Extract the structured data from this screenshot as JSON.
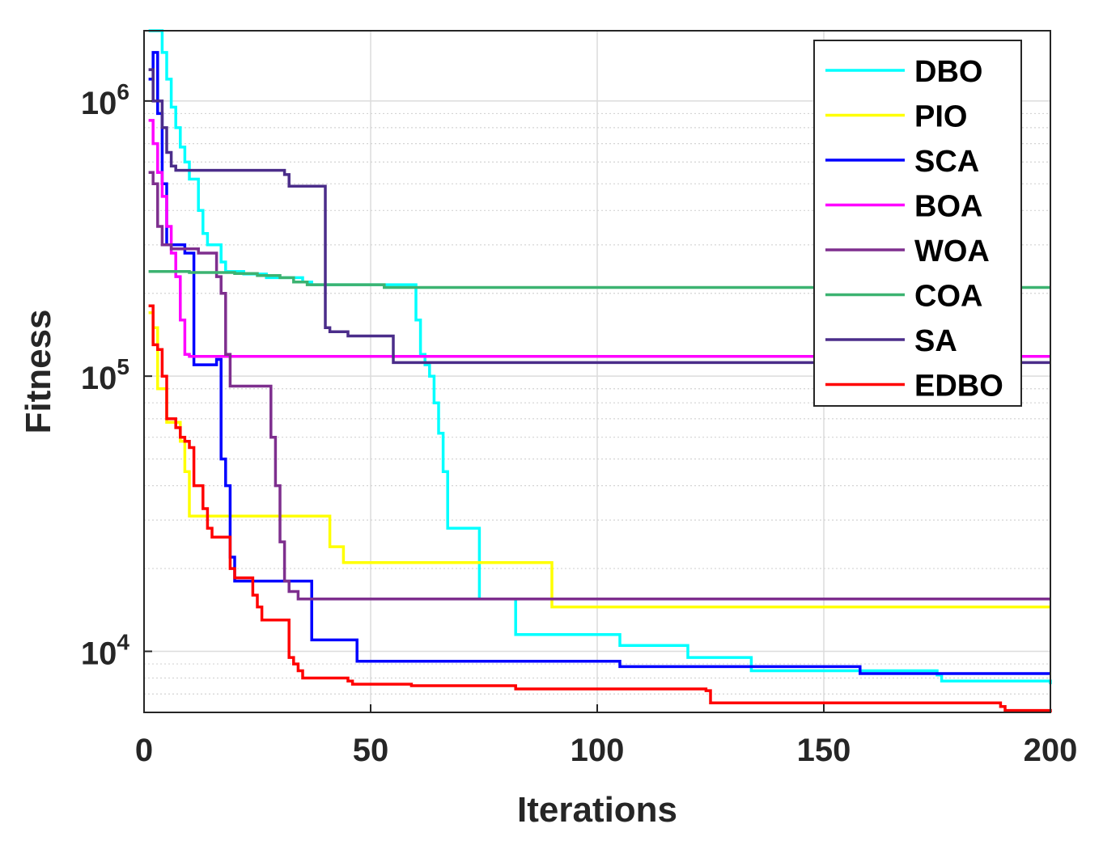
{
  "chart_data": {
    "type": "line",
    "title": "",
    "xlabel": "Iterations",
    "ylabel": "Fitness",
    "xscale": "linear",
    "yscale": "log",
    "xlim": [
      0,
      200
    ],
    "ylim": [
      6000,
      1800000
    ],
    "grid": true,
    "x_ticks": [
      {
        "value": 0,
        "label": "0"
      },
      {
        "value": 50,
        "label": "50"
      },
      {
        "value": 100,
        "label": "100"
      },
      {
        "value": 150,
        "label": "150"
      },
      {
        "value": 200,
        "label": "200"
      }
    ],
    "y_ticks": [
      {
        "value": 10000,
        "base": "10",
        "exp": "4"
      },
      {
        "value": 100000,
        "base": "10",
        "exp": "5"
      },
      {
        "value": 1000000,
        "base": "10",
        "exp": "6"
      }
    ],
    "legend_position": "top-right",
    "series": [
      {
        "name": "DBO",
        "color": "#00ffff",
        "points": [
          [
            1,
            1800000
          ],
          [
            3,
            1800000
          ],
          [
            4,
            1500000
          ],
          [
            5,
            1200000
          ],
          [
            6,
            950000
          ],
          [
            7,
            800000
          ],
          [
            8,
            680000
          ],
          [
            9,
            600000
          ],
          [
            10,
            520000
          ],
          [
            12,
            400000
          ],
          [
            13,
            330000
          ],
          [
            14,
            300000
          ],
          [
            17,
            260000
          ],
          [
            18,
            240000
          ],
          [
            22,
            235000
          ],
          [
            27,
            228000
          ],
          [
            35,
            220000
          ],
          [
            37,
            215000
          ],
          [
            59,
            215000
          ],
          [
            60,
            160000
          ],
          [
            61,
            120000
          ],
          [
            62,
            110000
          ],
          [
            63,
            100000
          ],
          [
            64,
            80000
          ],
          [
            65,
            62000
          ],
          [
            66,
            45000
          ],
          [
            67,
            28000
          ],
          [
            73,
            28000
          ],
          [
            74,
            15500
          ],
          [
            79,
            15500
          ],
          [
            82,
            11500
          ],
          [
            100,
            11500
          ],
          [
            105,
            10500
          ],
          [
            115,
            10500
          ],
          [
            120,
            9500
          ],
          [
            130,
            9500
          ],
          [
            134,
            8500
          ],
          [
            156,
            8500
          ],
          [
            175,
            8200
          ],
          [
            176,
            7800
          ],
          [
            200,
            7600
          ]
        ]
      },
      {
        "name": "PIO",
        "color": "#ffff00",
        "points": [
          [
            1,
            170000
          ],
          [
            2,
            150000
          ],
          [
            3,
            90000
          ],
          [
            5,
            68000
          ],
          [
            8,
            58000
          ],
          [
            9,
            45000
          ],
          [
            10,
            31000
          ],
          [
            40,
            31000
          ],
          [
            41,
            24000
          ],
          [
            43,
            24000
          ],
          [
            44,
            21000
          ],
          [
            89,
            21000
          ],
          [
            90,
            14500
          ],
          [
            200,
            14500
          ]
        ]
      },
      {
        "name": "SCA",
        "color": "#0000ff",
        "points": [
          [
            1,
            1200000
          ],
          [
            2,
            1500000
          ],
          [
            3,
            900000
          ],
          [
            4,
            500000
          ],
          [
            5,
            300000
          ],
          [
            9,
            280000
          ],
          [
            10,
            280000
          ],
          [
            11,
            110000
          ],
          [
            15,
            110000
          ],
          [
            16,
            115000
          ],
          [
            17,
            50000
          ],
          [
            18,
            40000
          ],
          [
            19,
            22000
          ],
          [
            20,
            18000
          ],
          [
            36,
            18000
          ],
          [
            37,
            11000
          ],
          [
            46,
            11000
          ],
          [
            47,
            9200
          ],
          [
            104,
            9200
          ],
          [
            105,
            8800
          ],
          [
            157,
            8800
          ],
          [
            158,
            8300
          ],
          [
            200,
            8300
          ]
        ]
      },
      {
        "name": "BOA",
        "color": "#ff00ff",
        "points": [
          [
            1,
            850000
          ],
          [
            2,
            700000
          ],
          [
            3,
            550000
          ],
          [
            4,
            450000
          ],
          [
            5,
            350000
          ],
          [
            6,
            280000
          ],
          [
            7,
            230000
          ],
          [
            8,
            160000
          ],
          [
            9,
            120000
          ],
          [
            10,
            118000
          ],
          [
            200,
            118000
          ]
        ]
      },
      {
        "name": "WOA",
        "color": "#7e2f8e",
        "points": [
          [
            1,
            550000
          ],
          [
            2,
            500000
          ],
          [
            3,
            350000
          ],
          [
            4,
            300000
          ],
          [
            6,
            290000
          ],
          [
            12,
            280000
          ],
          [
            16,
            230000
          ],
          [
            17,
            200000
          ],
          [
            18,
            120000
          ],
          [
            19,
            92000
          ],
          [
            27,
            92000
          ],
          [
            28,
            60000
          ],
          [
            29,
            40000
          ],
          [
            30,
            25000
          ],
          [
            31,
            18000
          ],
          [
            32,
            16500
          ],
          [
            34,
            15500
          ],
          [
            200,
            15500
          ]
        ]
      },
      {
        "name": "COA",
        "color": "#3cb371",
        "points": [
          [
            1,
            240000
          ],
          [
            10,
            238000
          ],
          [
            20,
            236000
          ],
          [
            25,
            232000
          ],
          [
            30,
            228000
          ],
          [
            33,
            220000
          ],
          [
            36,
            215000
          ],
          [
            52,
            215000
          ],
          [
            53,
            210000
          ],
          [
            200,
            210000
          ]
        ]
      },
      {
        "name": "SA",
        "color": "#4b2d8a",
        "points": [
          [
            1,
            1300000
          ],
          [
            2,
            1000000
          ],
          [
            4,
            800000
          ],
          [
            5,
            650000
          ],
          [
            6,
            580000
          ],
          [
            7,
            560000
          ],
          [
            30,
            560000
          ],
          [
            31,
            540000
          ],
          [
            32,
            490000
          ],
          [
            39,
            490000
          ],
          [
            40,
            150000
          ],
          [
            41,
            145000
          ],
          [
            44,
            145000
          ],
          [
            45,
            140000
          ],
          [
            54,
            140000
          ],
          [
            55,
            112000
          ],
          [
            200,
            112000
          ]
        ]
      },
      {
        "name": "EDBO",
        "color": "#ff0000",
        "points": [
          [
            1,
            180000
          ],
          [
            2,
            130000
          ],
          [
            3,
            125000
          ],
          [
            4,
            100000
          ],
          [
            5,
            70000
          ],
          [
            7,
            65000
          ],
          [
            8,
            60000
          ],
          [
            9,
            58000
          ],
          [
            10,
            55000
          ],
          [
            11,
            40000
          ],
          [
            13,
            33000
          ],
          [
            14,
            28000
          ],
          [
            15,
            26000
          ],
          [
            18,
            26000
          ],
          [
            19,
            20000
          ],
          [
            20,
            18500
          ],
          [
            23,
            18500
          ],
          [
            24,
            16000
          ],
          [
            25,
            14500
          ],
          [
            26,
            13000
          ],
          [
            31,
            13000
          ],
          [
            32,
            9500
          ],
          [
            33,
            9000
          ],
          [
            34,
            8500
          ],
          [
            35,
            8000
          ],
          [
            45,
            7800
          ],
          [
            46,
            7600
          ],
          [
            59,
            7500
          ],
          [
            82,
            7300
          ],
          [
            124,
            7200
          ],
          [
            125,
            6500
          ],
          [
            175,
            6500
          ],
          [
            189,
            6300
          ],
          [
            190,
            6100
          ],
          [
            200,
            6000
          ]
        ]
      }
    ]
  }
}
